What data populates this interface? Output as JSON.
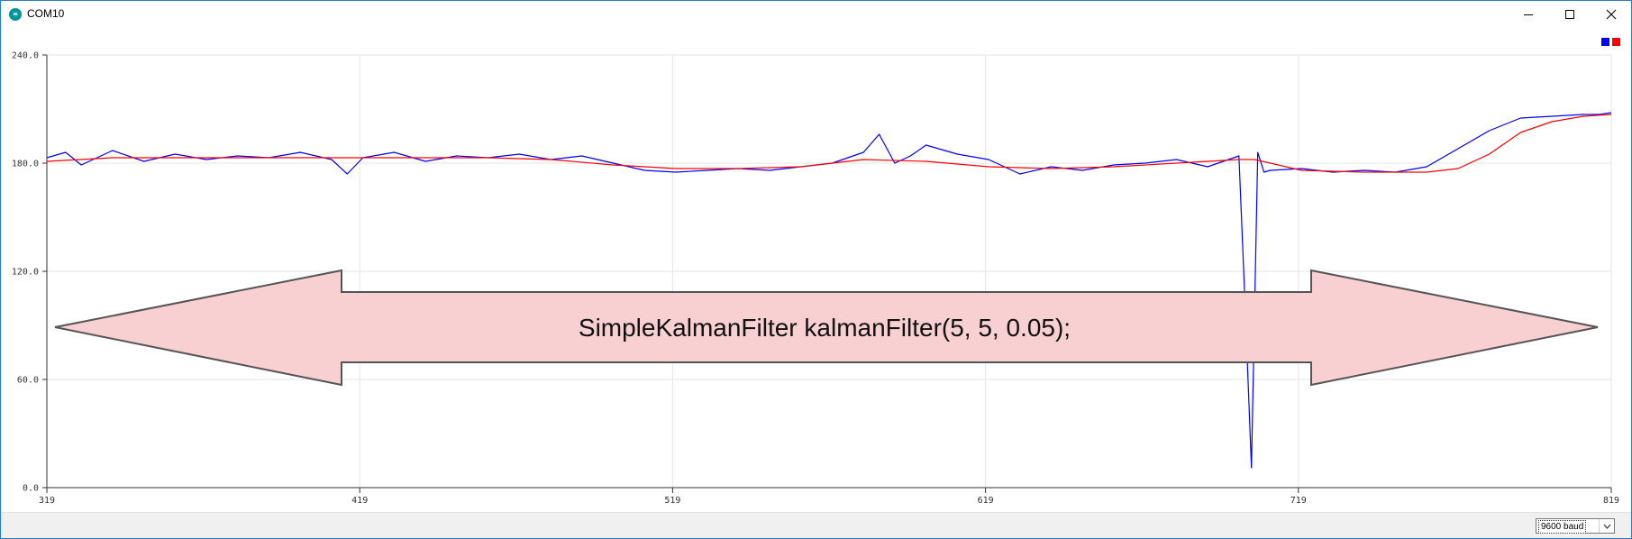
{
  "window": {
    "title": "COM10",
    "app_icon": "arduino-icon"
  },
  "controls": {
    "minimize": "minimize-icon",
    "maximize": "maximize-icon",
    "close": "close-icon"
  },
  "annotation": {
    "text": "SimpleKalmanFilter kalmanFilter(5, 5, 0.05);"
  },
  "status_bar": {
    "baud_rate": "9600 baud",
    "dropdown_icon": "chevron-down-icon"
  },
  "colors": {
    "raw": "#0000ff",
    "filtered": "#ff0000",
    "arrow_fill": "#f8d0d2",
    "arrow_stroke": "#555555"
  },
  "chart_data": {
    "type": "line",
    "x_range": [
      319,
      819
    ],
    "y_range": [
      0,
      240
    ],
    "x_ticks": [
      "319",
      "419",
      "519",
      "619",
      "719",
      "819"
    ],
    "y_ticks": [
      "0.0",
      "60.0",
      "120.0",
      "180.0",
      "240.0"
    ],
    "grid": true,
    "legend": "top-right",
    "series": [
      {
        "color": "#0000ff",
        "x": [
          319,
          325,
          330,
          340,
          350,
          360,
          370,
          380,
          390,
          400,
          410,
          415,
          420,
          430,
          440,
          450,
          460,
          470,
          480,
          490,
          500,
          510,
          520,
          530,
          540,
          550,
          560,
          570,
          580,
          585,
          590,
          595,
          600,
          610,
          620,
          630,
          640,
          650,
          660,
          670,
          680,
          690,
          700,
          702,
          704,
          706,
          708,
          710,
          720,
          730,
          740,
          750,
          760,
          770,
          780,
          790,
          800,
          810,
          815,
          819
        ],
        "y": [
          183,
          186,
          179,
          187,
          181,
          185,
          182,
          184,
          183,
          186,
          182,
          174,
          183,
          186,
          181,
          184,
          183,
          185,
          182,
          184,
          180,
          176,
          175,
          176,
          177,
          176,
          178,
          180,
          186,
          196,
          180,
          184,
          190,
          185,
          182,
          174,
          178,
          176,
          179,
          180,
          182,
          178,
          184,
          100,
          11,
          186,
          175,
          176,
          177,
          175,
          176,
          175,
          178,
          188,
          198,
          205,
          206,
          207,
          207,
          208
        ]
      },
      {
        "color": "#ff0000",
        "x": [
          319,
          340,
          360,
          380,
          400,
          420,
          440,
          460,
          480,
          500,
          520,
          540,
          560,
          580,
          600,
          620,
          640,
          660,
          680,
          700,
          705,
          720,
          740,
          760,
          770,
          780,
          790,
          800,
          810,
          819
        ],
        "y": [
          181,
          183,
          183,
          183,
          183,
          183,
          183,
          183,
          182,
          179,
          177,
          177,
          178,
          182,
          181,
          178,
          177,
          178,
          180,
          182,
          182,
          176,
          175,
          175,
          177,
          185,
          197,
          203,
          206,
          207
        ]
      }
    ]
  }
}
